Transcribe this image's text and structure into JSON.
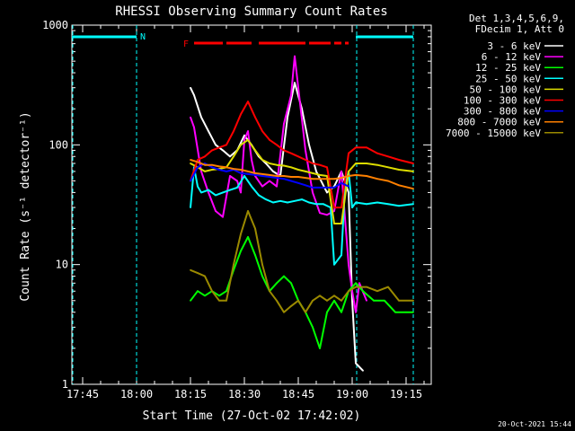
{
  "chart_data": {
    "type": "line",
    "title": "RHESSI Observing Summary Count Rates",
    "xlabel": "Start Time (27-Oct-02 17:42:02)",
    "ylabel": "Count Rate (s⁻¹ detector⁻¹)",
    "yscale": "log",
    "ylim": [
      1,
      1000
    ],
    "xlim_minutes_of_day": [
      1062,
      1162
    ],
    "x_ticks": [
      "17:45",
      "18:00",
      "18:15",
      "18:30",
      "18:45",
      "19:00",
      "19:15"
    ],
    "y_ticks": [
      "1",
      "10",
      "100",
      "1000"
    ],
    "legend_header": [
      "Det 1,3,4,5,6,9,",
      "FDecim 1, Att 0"
    ],
    "legend_position": "right",
    "footer_date": "20-Oct-2021 15:44",
    "annotations": {
      "night_label": "N",
      "flare_label": "F",
      "night_intervals": [
        [
          "17:42",
          "18:00"
        ],
        [
          "19:01",
          "19:17"
        ]
      ],
      "flare_segments": [
        [
          "18:16",
          "18:24"
        ],
        [
          "18:25",
          "18:32"
        ],
        [
          "18:34",
          "18:39"
        ],
        [
          "18:39",
          "18:47"
        ],
        [
          "18:48",
          "18:54"
        ],
        [
          "18:55",
          "18:57"
        ],
        [
          "18:58",
          "18:59"
        ]
      ]
    },
    "series": [
      {
        "name": "3 - 6 keV",
        "color": "#ffffff",
        "points": [
          [
            "18:15",
            300
          ],
          [
            "18:16",
            260
          ],
          [
            "18:18",
            170
          ],
          [
            "18:20",
            130
          ],
          [
            "18:22",
            100
          ],
          [
            "18:24",
            90
          ],
          [
            "18:26",
            80
          ],
          [
            "18:28",
            90
          ],
          [
            "18:30",
            120
          ],
          [
            "18:32",
            100
          ],
          [
            "18:34",
            80
          ],
          [
            "18:36",
            70
          ],
          [
            "18:38",
            60
          ],
          [
            "18:40",
            55
          ],
          [
            "18:42",
            170
          ],
          [
            "18:44",
            330
          ],
          [
            "18:46",
            200
          ],
          [
            "18:48",
            100
          ],
          [
            "18:50",
            60
          ],
          [
            "18:53",
            40
          ],
          [
            "18:55",
            45
          ],
          [
            "18:57",
            60
          ],
          [
            "18:59",
            40
          ],
          [
            "19:00",
            5
          ],
          [
            "19:01",
            1.5
          ],
          [
            "19:03",
            1.3
          ]
        ]
      },
      {
        "name": "6 - 12 keV",
        "color": "#ff00ff",
        "points": [
          [
            "18:15",
            170
          ],
          [
            "18:16",
            140
          ],
          [
            "18:18",
            60
          ],
          [
            "18:20",
            40
          ],
          [
            "18:22",
            28
          ],
          [
            "18:24",
            25
          ],
          [
            "18:26",
            55
          ],
          [
            "18:28",
            50
          ],
          [
            "18:29",
            40
          ],
          [
            "18:30",
            110
          ],
          [
            "18:31",
            130
          ],
          [
            "18:32",
            75
          ],
          [
            "18:33",
            55
          ],
          [
            "18:35",
            45
          ],
          [
            "18:37",
            50
          ],
          [
            "18:39",
            45
          ],
          [
            "18:41",
            150
          ],
          [
            "18:43",
            260
          ],
          [
            "18:44",
            550
          ],
          [
            "18:45",
            300
          ],
          [
            "18:47",
            90
          ],
          [
            "18:49",
            40
          ],
          [
            "18:51",
            27
          ],
          [
            "18:53",
            26
          ],
          [
            "18:55",
            28
          ],
          [
            "18:57",
            60
          ],
          [
            "18:59",
            10
          ],
          [
            "19:00",
            6
          ],
          [
            "19:01",
            4
          ],
          [
            "19:02",
            7
          ],
          [
            "19:04",
            5
          ]
        ]
      },
      {
        "name": "12 - 25 keV",
        "color": "#00ff00",
        "points": [
          [
            "18:15",
            5
          ],
          [
            "18:17",
            6
          ],
          [
            "18:19",
            5.5
          ],
          [
            "18:21",
            6
          ],
          [
            "18:23",
            5.5
          ],
          [
            "18:25",
            6
          ],
          [
            "18:27",
            9
          ],
          [
            "18:29",
            13
          ],
          [
            "18:31",
            17
          ],
          [
            "18:33",
            12
          ],
          [
            "18:35",
            8
          ],
          [
            "18:37",
            6
          ],
          [
            "18:39",
            7
          ],
          [
            "18:41",
            8
          ],
          [
            "18:43",
            7
          ],
          [
            "18:45",
            5
          ],
          [
            "18:47",
            4
          ],
          [
            "18:49",
            3
          ],
          [
            "18:51",
            2
          ],
          [
            "18:53",
            4
          ],
          [
            "18:55",
            5
          ],
          [
            "18:57",
            4
          ],
          [
            "18:59",
            6
          ],
          [
            "19:01",
            7
          ],
          [
            "19:03",
            6
          ],
          [
            "19:06",
            5
          ],
          [
            "19:09",
            5
          ],
          [
            "19:12",
            4
          ],
          [
            "19:15",
            4
          ],
          [
            "19:17",
            4
          ]
        ]
      },
      {
        "name": "25 - 50 keV",
        "color": "#00ffff",
        "points": [
          [
            "18:15",
            30
          ],
          [
            "18:16",
            65
          ],
          [
            "18:17",
            45
          ],
          [
            "18:18",
            40
          ],
          [
            "18:20",
            42
          ],
          [
            "18:22",
            38
          ],
          [
            "18:24",
            40
          ],
          [
            "18:26",
            42
          ],
          [
            "18:28",
            44
          ],
          [
            "18:30",
            55
          ],
          [
            "18:32",
            45
          ],
          [
            "18:34",
            38
          ],
          [
            "18:36",
            35
          ],
          [
            "18:38",
            33
          ],
          [
            "18:40",
            34
          ],
          [
            "18:42",
            33
          ],
          [
            "18:44",
            34
          ],
          [
            "18:46",
            35
          ],
          [
            "18:48",
            33
          ],
          [
            "18:50",
            32
          ],
          [
            "18:52",
            32
          ],
          [
            "18:54",
            30
          ],
          [
            "18:55",
            10
          ],
          [
            "18:57",
            12
          ],
          [
            "18:58",
            45
          ],
          [
            "18:59",
            60
          ],
          [
            "19:00",
            30
          ],
          [
            "19:01",
            33
          ],
          [
            "19:04",
            32
          ],
          [
            "19:07",
            33
          ],
          [
            "19:10",
            32
          ],
          [
            "19:13",
            31
          ],
          [
            "19:17",
            32
          ]
        ]
      },
      {
        "name": "50 - 100 keV",
        "color": "#dddd00",
        "points": [
          [
            "18:15",
            70
          ],
          [
            "18:17",
            65
          ],
          [
            "18:19",
            60
          ],
          [
            "18:21",
            62
          ],
          [
            "18:23",
            63
          ],
          [
            "18:25",
            65
          ],
          [
            "18:27",
            80
          ],
          [
            "18:29",
            100
          ],
          [
            "18:31",
            110
          ],
          [
            "18:33",
            90
          ],
          [
            "18:35",
            75
          ],
          [
            "18:37",
            70
          ],
          [
            "18:39",
            68
          ],
          [
            "18:41",
            67
          ],
          [
            "18:43",
            65
          ],
          [
            "18:45",
            62
          ],
          [
            "18:47",
            60
          ],
          [
            "18:49",
            58
          ],
          [
            "18:51",
            56
          ],
          [
            "18:53",
            55
          ],
          [
            "18:55",
            22
          ],
          [
            "18:57",
            22
          ],
          [
            "18:59",
            60
          ],
          [
            "19:01",
            70
          ],
          [
            "19:04",
            70
          ],
          [
            "19:07",
            68
          ],
          [
            "19:10",
            65
          ],
          [
            "19:13",
            62
          ],
          [
            "19:17",
            60
          ]
        ]
      },
      {
        "name": "100 - 300 keV",
        "color": "#ff0000",
        "points": [
          [
            "18:15",
            50
          ],
          [
            "18:17",
            75
          ],
          [
            "18:19",
            80
          ],
          [
            "18:21",
            90
          ],
          [
            "18:23",
            95
          ],
          [
            "18:25",
            100
          ],
          [
            "18:27",
            130
          ],
          [
            "18:29",
            180
          ],
          [
            "18:31",
            230
          ],
          [
            "18:33",
            170
          ],
          [
            "18:35",
            130
          ],
          [
            "18:37",
            110
          ],
          [
            "18:39",
            100
          ],
          [
            "18:41",
            90
          ],
          [
            "18:43",
            85
          ],
          [
            "18:45",
            80
          ],
          [
            "18:47",
            75
          ],
          [
            "18:49",
            70
          ],
          [
            "18:51",
            68
          ],
          [
            "18:53",
            65
          ],
          [
            "18:55",
            30
          ],
          [
            "18:57",
            30
          ],
          [
            "18:59",
            85
          ],
          [
            "19:01",
            95
          ],
          [
            "19:04",
            95
          ],
          [
            "19:07",
            85
          ],
          [
            "19:10",
            80
          ],
          [
            "19:13",
            75
          ],
          [
            "19:17",
            70
          ]
        ]
      },
      {
        "name": "300 - 800 keV",
        "color": "#0000ff",
        "points": [
          [
            "18:15",
            50
          ],
          [
            "18:17",
            65
          ],
          [
            "18:19",
            70
          ],
          [
            "18:21",
            65
          ],
          [
            "18:23",
            62
          ],
          [
            "18:25",
            60
          ],
          [
            "18:27",
            62
          ],
          [
            "18:29",
            58
          ],
          [
            "18:31",
            57
          ],
          [
            "18:33",
            56
          ],
          [
            "18:35",
            55
          ],
          [
            "18:37",
            54
          ],
          [
            "18:39",
            53
          ],
          [
            "18:41",
            52
          ],
          [
            "18:43",
            50
          ],
          [
            "18:45",
            48
          ],
          [
            "18:47",
            46
          ],
          [
            "18:49",
            44
          ],
          [
            "18:51",
            44
          ],
          [
            "18:53",
            44
          ],
          [
            "18:55",
            44
          ],
          [
            "18:57",
            48
          ],
          [
            "18:59",
            45
          ]
        ]
      },
      {
        "name": "800 - 7000 keV",
        "color": "#ff8000",
        "points": [
          [
            "18:15",
            75
          ],
          [
            "18:17",
            72
          ],
          [
            "18:19",
            68
          ],
          [
            "18:21",
            68
          ],
          [
            "18:23",
            66
          ],
          [
            "18:25",
            65
          ],
          [
            "18:27",
            63
          ],
          [
            "18:29",
            62
          ],
          [
            "18:31",
            60
          ],
          [
            "18:33",
            58
          ],
          [
            "18:35",
            57
          ],
          [
            "18:37",
            56
          ],
          [
            "18:39",
            55
          ],
          [
            "18:41",
            55
          ],
          [
            "18:43",
            54
          ],
          [
            "18:45",
            54
          ],
          [
            "18:47",
            53
          ],
          [
            "18:49",
            52
          ],
          [
            "18:51",
            52
          ],
          [
            "18:53",
            52
          ],
          [
            "18:55",
            52
          ],
          [
            "18:57",
            53
          ],
          [
            "18:59",
            55
          ],
          [
            "19:01",
            56
          ],
          [
            "19:04",
            55
          ],
          [
            "19:07",
            52
          ],
          [
            "19:10",
            50
          ],
          [
            "19:13",
            46
          ],
          [
            "19:17",
            43
          ]
        ]
      },
      {
        "name": "7000 - 15000 keV",
        "color": "#9b8a00",
        "points": [
          [
            "18:15",
            9
          ],
          [
            "18:17",
            8.5
          ],
          [
            "18:19",
            8
          ],
          [
            "18:21",
            6
          ],
          [
            "18:23",
            5
          ],
          [
            "18:25",
            5
          ],
          [
            "18:27",
            10
          ],
          [
            "18:29",
            18
          ],
          [
            "18:31",
            28
          ],
          [
            "18:33",
            20
          ],
          [
            "18:35",
            10
          ],
          [
            "18:37",
            6
          ],
          [
            "18:39",
            5
          ],
          [
            "18:41",
            4
          ],
          [
            "18:43",
            4.5
          ],
          [
            "18:45",
            5
          ],
          [
            "18:47",
            4
          ],
          [
            "18:49",
            5
          ],
          [
            "18:51",
            5.5
          ],
          [
            "18:53",
            5
          ],
          [
            "18:55",
            5.5
          ],
          [
            "18:57",
            5
          ],
          [
            "18:59",
            6
          ],
          [
            "19:01",
            6.5
          ],
          [
            "19:04",
            6.5
          ],
          [
            "19:07",
            6
          ],
          [
            "19:10",
            6.5
          ],
          [
            "19:13",
            5
          ],
          [
            "19:17",
            5
          ]
        ]
      }
    ]
  }
}
